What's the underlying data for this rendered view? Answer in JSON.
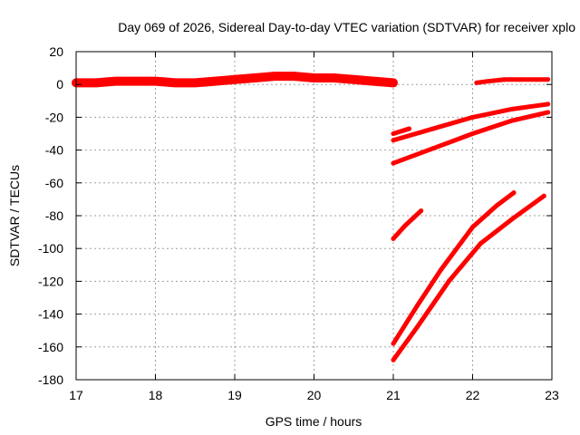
{
  "chart_data": {
    "type": "scatter",
    "title": "Day 069 of 2026, Sidereal Day-to-day VTEC variation (SDTVAR) for receiver xplo",
    "xlabel": "GPS time / hours",
    "ylabel": "SDTVAR / TECUs",
    "xlim": [
      17,
      23
    ],
    "ylim": [
      -180,
      20
    ],
    "x_ticks": [
      17,
      18,
      19,
      20,
      21,
      22,
      23
    ],
    "y_ticks": [
      -180,
      -160,
      -140,
      -120,
      -100,
      -80,
      -60,
      -40,
      -20,
      0,
      20
    ],
    "x_tick_labels": [
      "17",
      "18",
      "19",
      "20",
      "21",
      "22",
      "23"
    ],
    "y_tick_labels": [
      "-180",
      "-160",
      "-140",
      "-120",
      "-100",
      "-80",
      "-60",
      "-40",
      "-20",
      "0",
      "20"
    ],
    "grid": true,
    "series_color": "#ff0000",
    "series": [
      {
        "x": [
          17.0,
          17.25,
          17.5,
          17.75,
          18.0,
          18.25,
          18.5,
          18.75,
          19.0,
          19.25,
          19.5,
          19.75,
          20.0,
          20.25,
          20.5,
          20.75,
          21.0
        ],
        "values": [
          1,
          1,
          2,
          2,
          2,
          1,
          1,
          2,
          3,
          4,
          5,
          5,
          4,
          4,
          3,
          2,
          1
        ]
      },
      {
        "x": [
          22.05,
          22.2,
          22.4,
          22.6,
          22.8,
          22.95
        ],
        "values": [
          1,
          2,
          3,
          3,
          3,
          3
        ]
      },
      {
        "x": [
          21.0,
          21.2
        ],
        "values": [
          -30,
          -27
        ]
      },
      {
        "x": [
          21.0,
          21.5,
          22.0,
          22.5,
          22.95
        ],
        "values": [
          -34,
          -27,
          -20,
          -15,
          -12
        ]
      },
      {
        "x": [
          21.0,
          21.5,
          22.0,
          22.5,
          22.95
        ],
        "values": [
          -48,
          -39,
          -30,
          -22,
          -17
        ]
      },
      {
        "x": [
          21.0,
          21.15,
          21.35
        ],
        "values": [
          -94,
          -86,
          -77
        ]
      },
      {
        "x": [
          21.0,
          21.3,
          21.6,
          22.0,
          22.3,
          22.52
        ],
        "values": [
          -158,
          -135,
          -113,
          -87,
          -74,
          -66
        ]
      },
      {
        "x": [
          21.0,
          21.3,
          21.7,
          22.1,
          22.5,
          22.9
        ],
        "values": [
          -168,
          -148,
          -120,
          -97,
          -82,
          -68
        ]
      }
    ]
  }
}
